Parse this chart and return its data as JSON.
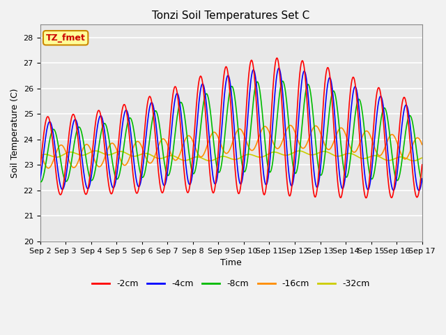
{
  "title": "Tonzi Soil Temperatures Set C",
  "xlabel": "Time",
  "ylabel": "Soil Temperature (C)",
  "ylim": [
    20.0,
    28.5
  ],
  "yticks": [
    20.0,
    21.0,
    22.0,
    23.0,
    24.0,
    25.0,
    26.0,
    27.0,
    28.0
  ],
  "xtick_labels": [
    "Sep 2",
    "Sep 3",
    "Sep 4",
    "Sep 5",
    "Sep 6",
    "Sep 7",
    "Sep 8",
    "Sep 9",
    "Sep 10",
    "Sep 11",
    "Sep 12",
    "Sep 13",
    "Sep 14",
    "Sep 15",
    "Sep 16",
    "Sep 17"
  ],
  "series_colors": [
    "#FF0000",
    "#0000FF",
    "#00BB00",
    "#FF8C00",
    "#CCCC00"
  ],
  "series_labels": [
    "-2cm",
    "-4cm",
    "-8cm",
    "-16cm",
    "-32cm"
  ],
  "line_width": 1.2,
  "annotation_text": "TZ_fmet",
  "annotation_color": "#CC0000",
  "annotation_bg": "#FFFF99",
  "annotation_border": "#CC8800",
  "plot_bg_color": "#E8E8E8",
  "fig_bg_color": "#F2F2F2",
  "grid_color": "#FFFFFF",
  "title_fontsize": 11,
  "label_fontsize": 9,
  "tick_fontsize": 8,
  "legend_fontsize": 9
}
